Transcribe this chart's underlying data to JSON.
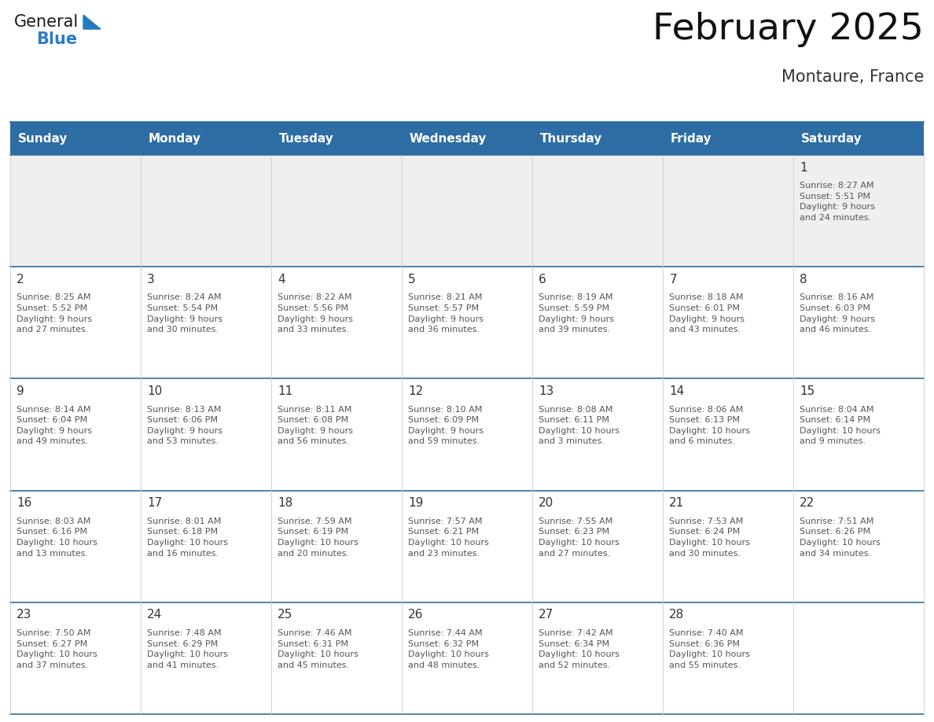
{
  "title": "February 2025",
  "subtitle": "Montaure, France",
  "header_bg": "#2E6DA4",
  "header_text": "#FFFFFF",
  "day_headers": [
    "Sunday",
    "Monday",
    "Tuesday",
    "Wednesday",
    "Thursday",
    "Friday",
    "Saturday"
  ],
  "cell_bg_week0": "#EFEFEF",
  "cell_bg_other": "#FFFFFF",
  "cell_line_color": "#2E6DA4",
  "day_number_color": "#333333",
  "text_color": "#555555",
  "bg_color": "#FFFFFF",
  "calendar": [
    [
      {
        "day": null,
        "info": null
      },
      {
        "day": null,
        "info": null
      },
      {
        "day": null,
        "info": null
      },
      {
        "day": null,
        "info": null
      },
      {
        "day": null,
        "info": null
      },
      {
        "day": null,
        "info": null
      },
      {
        "day": 1,
        "info": "Sunrise: 8:27 AM\nSunset: 5:51 PM\nDaylight: 9 hours\nand 24 minutes."
      }
    ],
    [
      {
        "day": 2,
        "info": "Sunrise: 8:25 AM\nSunset: 5:52 PM\nDaylight: 9 hours\nand 27 minutes."
      },
      {
        "day": 3,
        "info": "Sunrise: 8:24 AM\nSunset: 5:54 PM\nDaylight: 9 hours\nand 30 minutes."
      },
      {
        "day": 4,
        "info": "Sunrise: 8:22 AM\nSunset: 5:56 PM\nDaylight: 9 hours\nand 33 minutes."
      },
      {
        "day": 5,
        "info": "Sunrise: 8:21 AM\nSunset: 5:57 PM\nDaylight: 9 hours\nand 36 minutes."
      },
      {
        "day": 6,
        "info": "Sunrise: 8:19 AM\nSunset: 5:59 PM\nDaylight: 9 hours\nand 39 minutes."
      },
      {
        "day": 7,
        "info": "Sunrise: 8:18 AM\nSunset: 6:01 PM\nDaylight: 9 hours\nand 43 minutes."
      },
      {
        "day": 8,
        "info": "Sunrise: 8:16 AM\nSunset: 6:03 PM\nDaylight: 9 hours\nand 46 minutes."
      }
    ],
    [
      {
        "day": 9,
        "info": "Sunrise: 8:14 AM\nSunset: 6:04 PM\nDaylight: 9 hours\nand 49 minutes."
      },
      {
        "day": 10,
        "info": "Sunrise: 8:13 AM\nSunset: 6:06 PM\nDaylight: 9 hours\nand 53 minutes."
      },
      {
        "day": 11,
        "info": "Sunrise: 8:11 AM\nSunset: 6:08 PM\nDaylight: 9 hours\nand 56 minutes."
      },
      {
        "day": 12,
        "info": "Sunrise: 8:10 AM\nSunset: 6:09 PM\nDaylight: 9 hours\nand 59 minutes."
      },
      {
        "day": 13,
        "info": "Sunrise: 8:08 AM\nSunset: 6:11 PM\nDaylight: 10 hours\nand 3 minutes."
      },
      {
        "day": 14,
        "info": "Sunrise: 8:06 AM\nSunset: 6:13 PM\nDaylight: 10 hours\nand 6 minutes."
      },
      {
        "day": 15,
        "info": "Sunrise: 8:04 AM\nSunset: 6:14 PM\nDaylight: 10 hours\nand 9 minutes."
      }
    ],
    [
      {
        "day": 16,
        "info": "Sunrise: 8:03 AM\nSunset: 6:16 PM\nDaylight: 10 hours\nand 13 minutes."
      },
      {
        "day": 17,
        "info": "Sunrise: 8:01 AM\nSunset: 6:18 PM\nDaylight: 10 hours\nand 16 minutes."
      },
      {
        "day": 18,
        "info": "Sunrise: 7:59 AM\nSunset: 6:19 PM\nDaylight: 10 hours\nand 20 minutes."
      },
      {
        "day": 19,
        "info": "Sunrise: 7:57 AM\nSunset: 6:21 PM\nDaylight: 10 hours\nand 23 minutes."
      },
      {
        "day": 20,
        "info": "Sunrise: 7:55 AM\nSunset: 6:23 PM\nDaylight: 10 hours\nand 27 minutes."
      },
      {
        "day": 21,
        "info": "Sunrise: 7:53 AM\nSunset: 6:24 PM\nDaylight: 10 hours\nand 30 minutes."
      },
      {
        "day": 22,
        "info": "Sunrise: 7:51 AM\nSunset: 6:26 PM\nDaylight: 10 hours\nand 34 minutes."
      }
    ],
    [
      {
        "day": 23,
        "info": "Sunrise: 7:50 AM\nSunset: 6:27 PM\nDaylight: 10 hours\nand 37 minutes."
      },
      {
        "day": 24,
        "info": "Sunrise: 7:48 AM\nSunset: 6:29 PM\nDaylight: 10 hours\nand 41 minutes."
      },
      {
        "day": 25,
        "info": "Sunrise: 7:46 AM\nSunset: 6:31 PM\nDaylight: 10 hours\nand 45 minutes."
      },
      {
        "day": 26,
        "info": "Sunrise: 7:44 AM\nSunset: 6:32 PM\nDaylight: 10 hours\nand 48 minutes."
      },
      {
        "day": 27,
        "info": "Sunrise: 7:42 AM\nSunset: 6:34 PM\nDaylight: 10 hours\nand 52 minutes."
      },
      {
        "day": 28,
        "info": "Sunrise: 7:40 AM\nSunset: 6:36 PM\nDaylight: 10 hours\nand 55 minutes."
      },
      {
        "day": null,
        "info": null
      }
    ]
  ],
  "logo_general_color": "#1A1A1A",
  "logo_blue_color": "#2E7CC4",
  "logo_triangle_color": "#2579BF",
  "fig_width": 11.88,
  "fig_height": 9.18,
  "dpi": 100
}
